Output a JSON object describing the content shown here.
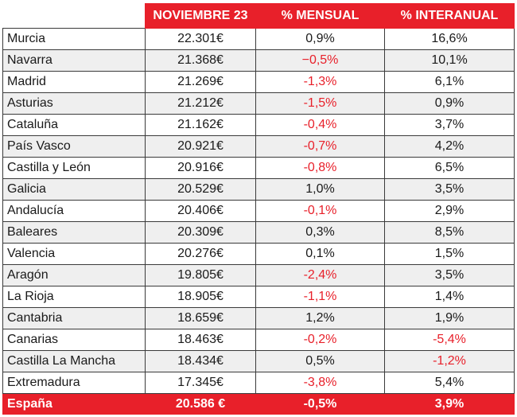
{
  "header": {
    "col_region": "",
    "col_price": "NOVIEMBRE 23",
    "col_month": "% MENSUAL",
    "col_year": "% INTERANUAL"
  },
  "colors": {
    "accent": "#e8202a",
    "negative": "#e8202a",
    "stripe": "#efefef"
  },
  "rows": [
    {
      "region": "Murcia",
      "price": "22.301€",
      "monthly": "0,9%",
      "yearly": "16,6%"
    },
    {
      "region": "Navarra",
      "price": "21.368€",
      "monthly": "−0,5%",
      "yearly": "10,1%"
    },
    {
      "region": "Madrid",
      "price": "21.269€",
      "monthly": "-1,3%",
      "yearly": "6,1%"
    },
    {
      "region": "Asturias",
      "price": "21.212€",
      "monthly": "-1,5%",
      "yearly": "0,9%"
    },
    {
      "region": "Cataluña",
      "price": "21.162€",
      "monthly": "-0,4%",
      "yearly": "3,7%"
    },
    {
      "region": "País Vasco",
      "price": "20.921€",
      "monthly": "-0,7%",
      "yearly": "4,2%"
    },
    {
      "region": "Castilla y León",
      "price": "20.916€",
      "monthly": "-0,8%",
      "yearly": "6,5%"
    },
    {
      "region": "Galicia",
      "price": "20.529€",
      "monthly": "1,0%",
      "yearly": "3,5%"
    },
    {
      "region": "Andalucía",
      "price": "20.406€",
      "monthly": "-0,1%",
      "yearly": "2,9%"
    },
    {
      "region": "Baleares",
      "price": "20.309€",
      "monthly": "0,3%",
      "yearly": "8,5%"
    },
    {
      "region": "Valencia",
      "price": "20.276€",
      "monthly": "0,1%",
      "yearly": "1,5%"
    },
    {
      "region": "Aragón",
      "price": "19.805€",
      "monthly": "-2,4%",
      "yearly": "3,5%"
    },
    {
      "region": "La Rioja",
      "price": "18.905€",
      "monthly": "-1,1%",
      "yearly": "1,4%"
    },
    {
      "region": "Cantabria",
      "price": "18.659€",
      "monthly": "1,2%",
      "yearly": "1,9%"
    },
    {
      "region": "Canarias",
      "price": "18.463€",
      "monthly": "-0,2%",
      "yearly": "-5,4%"
    },
    {
      "region": "Castilla La Mancha",
      "price": "18.434€",
      "monthly": "0,5%",
      "yearly": "-1,2%"
    },
    {
      "region": "Extremadura",
      "price": "17.345€",
      "monthly": "-3,8%",
      "yearly": "5,4%"
    }
  ],
  "total": {
    "region": "España",
    "price": "20.586 €",
    "monthly": "-0,5%",
    "yearly": "3,9%"
  }
}
